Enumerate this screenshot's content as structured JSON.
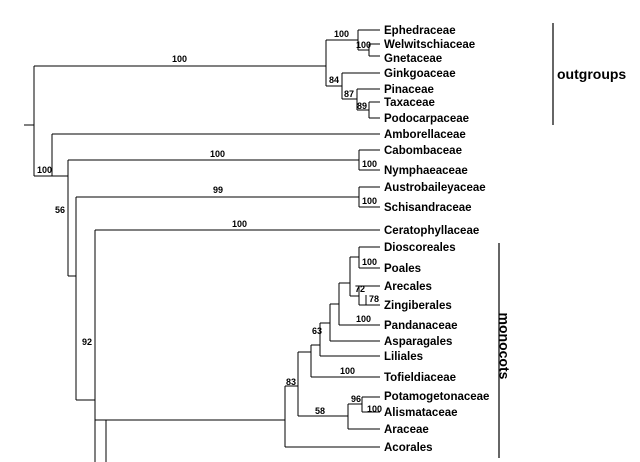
{
  "taxa": {
    "ephedraceae": "Ephedraceae",
    "welwitschiaceae": "Welwitschiaceae",
    "gnetaceae": "Gnetaceae",
    "ginkgoaceae": "Ginkgoaceae",
    "pinaceae": "Pinaceae",
    "taxaceae": "Taxaceae",
    "podocarpaceae": "Podocarpaceae",
    "amborellaceae": "Amborellaceae",
    "cabombaceae": "Cabombaceae",
    "nymphaeaceae": "Nymphaeaceae",
    "austrobaileyaceae": "Austrobaileyaceae",
    "schisandraceae": "Schisandraceae",
    "ceratophyllaceae": "Ceratophyllaceae",
    "dioscoreales": "Dioscoreales",
    "poales": "Poales",
    "arecales": "Arecales",
    "zingiberales": "Zingiberales",
    "pandanaceae": "Pandanaceae",
    "asparagales": "Asparagales",
    "liliales": "Liliales",
    "tofieldiaceae": "Tofieldiaceae",
    "potamogetonaceae": "Potamogetonaceae",
    "alismataceae": "Alismataceae",
    "araceae": "Araceae",
    "acorales": "Acorales"
  },
  "support": {
    "seed_plants": "100",
    "gnetales": "100",
    "welwitschia_gnetum": "100",
    "conifers": "84",
    "pinaceae_taxaceae": "87",
    "taxaceae_podocarpaceae": "89",
    "root": "100",
    "angio_rest": "56",
    "nymphaeales_stem": "100",
    "nymphaeales": "100",
    "austrobaileyales_stem": "99",
    "austrobaileyales": "100",
    "ceratophyllum_stem": "100",
    "mesangio": "92",
    "dioscoreales_poales": "100",
    "arecales_zing": "72",
    "zing_inner": "78",
    "pandanaceae": "100",
    "lilioid": "63",
    "tofieldiaceae": "100",
    "monocots_core": "83",
    "alismatids": "58",
    "potamogetonaceae": "96",
    "alismataceae": "100"
  },
  "groups": {
    "outgroups": "outgroups",
    "monocots": "monocots"
  }
}
